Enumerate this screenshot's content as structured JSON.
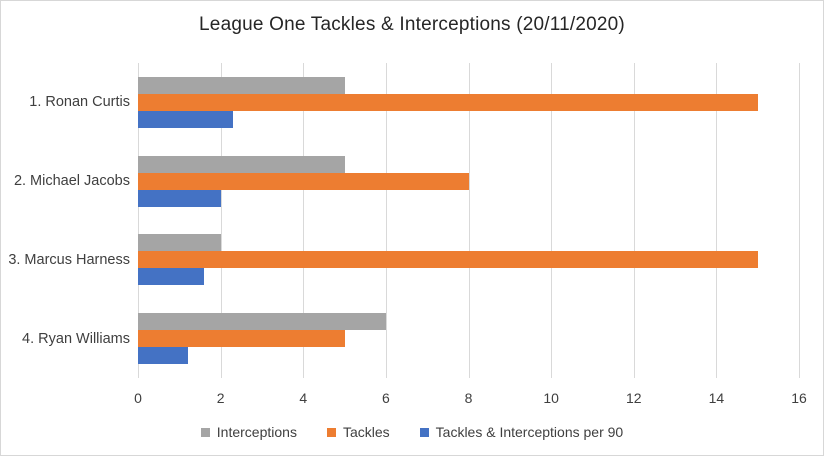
{
  "title": "League One Tackles & Interceptions (20/11/2020)",
  "chart_data": {
    "type": "bar",
    "orientation": "horizontal",
    "title": "League One Tackles & Interceptions (20/11/2020)",
    "categories": [
      "1. Ronan Curtis",
      "2. Michael Jacobs",
      "3. Marcus Harness",
      "4. Ryan Williams"
    ],
    "series": [
      {
        "name": "Interceptions",
        "color": "#A5A5A5",
        "values": [
          5,
          5,
          2,
          6
        ]
      },
      {
        "name": "Tackles",
        "color": "#ED7D31",
        "values": [
          15,
          8,
          15,
          5
        ]
      },
      {
        "name": "Tackles & Interceptions per 90",
        "color": "#4472C4",
        "values": [
          2.3,
          2,
          1.6,
          1.2
        ]
      }
    ],
    "xlim": [
      0,
      16
    ],
    "xticks": [
      0,
      2,
      4,
      6,
      8,
      10,
      12,
      14,
      16
    ],
    "xlabel": "",
    "ylabel": "",
    "grid": "vertical-only",
    "gridline_color": "#D9D9D9",
    "legend_position": "bottom",
    "legend": [
      "Interceptions",
      "Tackles",
      "Tackles & Interceptions per 90"
    ]
  }
}
